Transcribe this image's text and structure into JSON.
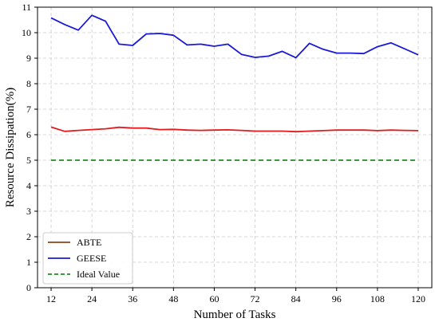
{
  "chart_data": {
    "type": "line",
    "title": "",
    "xlabel": "Number of Tasks",
    "ylabel": "Resource Dissipation(%)",
    "xlim": [
      8,
      124
    ],
    "ylim": [
      0,
      11
    ],
    "xticks": [
      12,
      24,
      36,
      48,
      60,
      72,
      84,
      96,
      108,
      120
    ],
    "yticks": [
      0,
      1,
      2,
      3,
      4,
      5,
      6,
      7,
      8,
      9,
      10,
      11
    ],
    "grid": true,
    "legend_position": "lower-left",
    "series": [
      {
        "name": "ABTE",
        "color": "#e41a1c",
        "style": "solid",
        "x": [
          12,
          16,
          20,
          24,
          28,
          32,
          36,
          40,
          44,
          48,
          52,
          56,
          60,
          64,
          68,
          72,
          76,
          80,
          84,
          88,
          92,
          96,
          100,
          104,
          108,
          112,
          116,
          120
        ],
        "y": [
          6.3,
          6.13,
          6.17,
          6.2,
          6.23,
          6.29,
          6.26,
          6.26,
          6.2,
          6.21,
          6.18,
          6.17,
          6.18,
          6.19,
          6.17,
          6.14,
          6.14,
          6.14,
          6.12,
          6.14,
          6.16,
          6.18,
          6.18,
          6.18,
          6.16,
          6.18,
          6.17,
          6.16
        ]
      },
      {
        "name": "GEESE",
        "color": "#1a1ad6",
        "style": "solid",
        "x": [
          12,
          16,
          20,
          24,
          28,
          32,
          36,
          40,
          44,
          48,
          52,
          56,
          60,
          64,
          68,
          72,
          76,
          80,
          84,
          88,
          92,
          96,
          100,
          104,
          108,
          112,
          116,
          120
        ],
        "y": [
          10.58,
          10.32,
          10.1,
          10.68,
          10.45,
          9.55,
          9.5,
          9.95,
          9.97,
          9.9,
          9.52,
          9.55,
          9.47,
          9.55,
          9.15,
          9.03,
          9.08,
          9.27,
          9.02,
          9.58,
          9.35,
          9.2,
          9.2,
          9.18,
          9.45,
          9.6,
          9.37,
          9.13
        ]
      },
      {
        "name": "Ideal Value",
        "color": "#228b22",
        "style": "dashed",
        "x": [
          12,
          120
        ],
        "y": [
          5,
          5
        ]
      }
    ],
    "legend": [
      {
        "label": "ABTE",
        "color": "#8b4513",
        "style": "solid"
      },
      {
        "label": "GEESE",
        "color": "#1a1ad6",
        "style": "solid"
      },
      {
        "label": "Ideal Value",
        "color": "#228b22",
        "style": "dashed"
      }
    ]
  }
}
